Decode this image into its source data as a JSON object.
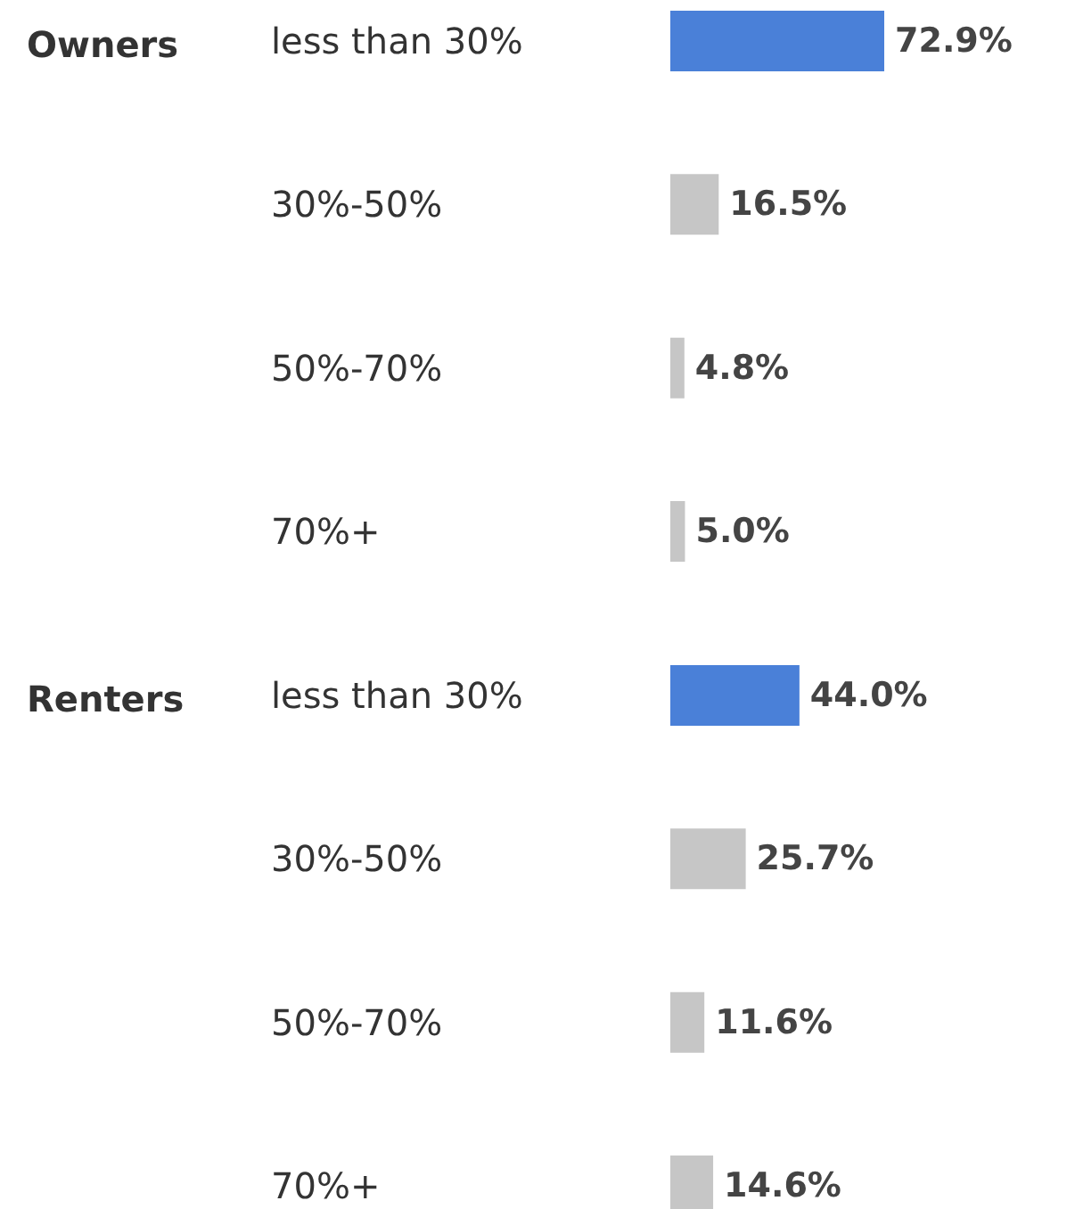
{
  "chart_data": [
    {
      "type": "bar",
      "orientation": "horizontal",
      "title": "Owners",
      "categories": [
        "less than 30%",
        "30%-50%",
        "50%-70%",
        "70%+"
      ],
      "values": [
        72.9,
        16.5,
        4.8,
        5.0
      ],
      "colors": [
        "#4a80d8",
        "#c6c6c6",
        "#c6c6c6",
        "#c6c6c6"
      ],
      "value_labels": [
        "72.9%",
        "16.5%",
        "4.8%",
        "5.0%"
      ],
      "tick_labels": "y"
    },
    {
      "type": "bar",
      "orientation": "horizontal",
      "title": "Renters",
      "categories": [
        "less than 30%",
        "30%-50%",
        "50%-70%",
        "70%+"
      ],
      "values": [
        44.0,
        25.7,
        11.6,
        14.6
      ],
      "colors": [
        "#4a80d8",
        "#c6c6c6",
        "#c6c6c6",
        "#c6c6c6"
      ],
      "value_labels": [
        "44.0%",
        "25.7%",
        "11.6%",
        "14.6%"
      ],
      "tick_labels": "y"
    }
  ]
}
